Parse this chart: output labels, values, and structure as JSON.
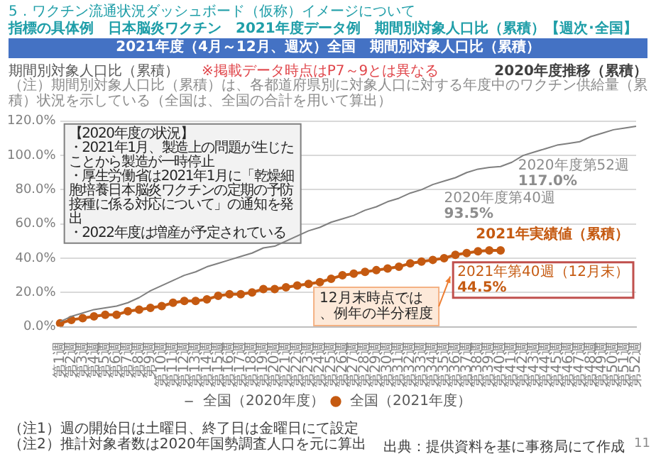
{
  "chart_data": {
    "type": "line",
    "title": "5．ワクチン流通状況ダッシュボード（仮称）イメージについて",
    "subtitle": "指標の具体例　日本脳炎ワクチン　2021年度データ例　期間別対象人口比（累積）【週次･全国】",
    "ylabel": "期間別対象人口比（累積）",
    "categories": [
      "第1週",
      "第2週",
      "第3週",
      "第4週",
      "第5週",
      "第6週",
      "第7週",
      "第8週",
      "第9週",
      "第10週",
      "第11週",
      "第12週",
      "第13週",
      "第14週",
      "第15週",
      "第16週",
      "第17週",
      "第18週",
      "第19週",
      "第20週",
      "第21週",
      "第22週",
      "第23週",
      "第24週",
      "第25週",
      "第26週",
      "第27週",
      "第28週",
      "第29週",
      "第30週",
      "第31週",
      "第32週",
      "第33週",
      "第34週",
      "第35週",
      "第36週",
      "第37週",
      "第38週",
      "第39週",
      "第40週",
      "第41週",
      "第42週",
      "第43週",
      "第44週",
      "第45週",
      "第46週",
      "第47週",
      "第48週",
      "第49週",
      "第50週",
      "第51週",
      "第52週"
    ],
    "series": [
      {
        "name": "全国（2020年度）",
        "color": "#7f7f7f",
        "marker": "none",
        "values": [
          3,
          6,
          8,
          10,
          11,
          12,
          14,
          17,
          21,
          24,
          27,
          30,
          32,
          35,
          37,
          39,
          41,
          43,
          46,
          47,
          50,
          53,
          56,
          58,
          61,
          63,
          65,
          68,
          70,
          73,
          75,
          78,
          80,
          83,
          85,
          87,
          90,
          92,
          93,
          93.5,
          96,
          100,
          102,
          104,
          106,
          107,
          108,
          111,
          113,
          115,
          116,
          117
        ]
      },
      {
        "name": "全国（2021年度）",
        "color": "#c55a11",
        "values": [
          2,
          4,
          5,
          6,
          7,
          7,
          9,
          10,
          11,
          12,
          14,
          15,
          15,
          16,
          18,
          19,
          19,
          20,
          22,
          22,
          23,
          24,
          25,
          26,
          28,
          30,
          31,
          32,
          33,
          34,
          35,
          37,
          38,
          39,
          40,
          42,
          43,
          44,
          44.5,
          44.5,
          null,
          null,
          null,
          null,
          null,
          null,
          null,
          null,
          null,
          null,
          null,
          null
        ]
      }
    ],
    "ylim": [
      0,
      120
    ],
    "yticks": [
      {
        "value": 0,
        "label": "0.0%"
      },
      {
        "value": 20,
        "label": "20.0%"
      },
      {
        "value": 40,
        "label": "40.0%"
      },
      {
        "value": 60,
        "label": "60.0%"
      },
      {
        "value": 80,
        "label": "80.0%"
      },
      {
        "value": 100,
        "label": "100.0%"
      },
      {
        "value": 120,
        "label": "120.0%"
      }
    ],
    "grid": "y",
    "legend": "bottom",
    "marker": "circle",
    "line_style": "solid",
    "annotations": [
      "2021年度（4月～12月、週次）全国　期間別対象人口比（累積）",
      "（注）期間別対象人口比（累積）は、各都道府県別に対象人口に対する年度中のワクチン供給量（累積）状況を示している（全国は、全国の合計を用いて算出）",
      "※掲載データ時点はP7～9とは異なる",
      "【2020年度の状況】",
      "・2021年1月、製造上の問題が生じたことから製造が一時停止",
      "・厚生労働省は2021年1月に「乾燥細胞培養日本脳炎ワクチンの定期の予防接種に係る対応について」の通知を発出",
      "・2022年度は増産が予定されている",
      "12月末時点では、例年の半分程度",
      "（注1）週の開始日は土曜日、終了日は金曜日にて設定",
      "（注2）推計対象者数は2020年国勢調査人口を元に算出",
      "出典：提供資料を基に事務局にて作成",
      "11",
      "2020年度推移（累積）",
      {
        "text": "2020年度第52週\n117.0%",
        "x": "第52週",
        "y": 117
      },
      {
        "text": "2020年度第40週\n93.5%",
        "x": "第40週",
        "y": 93.5
      },
      {
        "text": "2021年実績値（累積）",
        "x": "第40週",
        "y": 44.5
      },
      {
        "text": "2021年第40週（12月末）\n44.5%",
        "x": "第40週",
        "y": 44.5
      }
    ]
  }
}
